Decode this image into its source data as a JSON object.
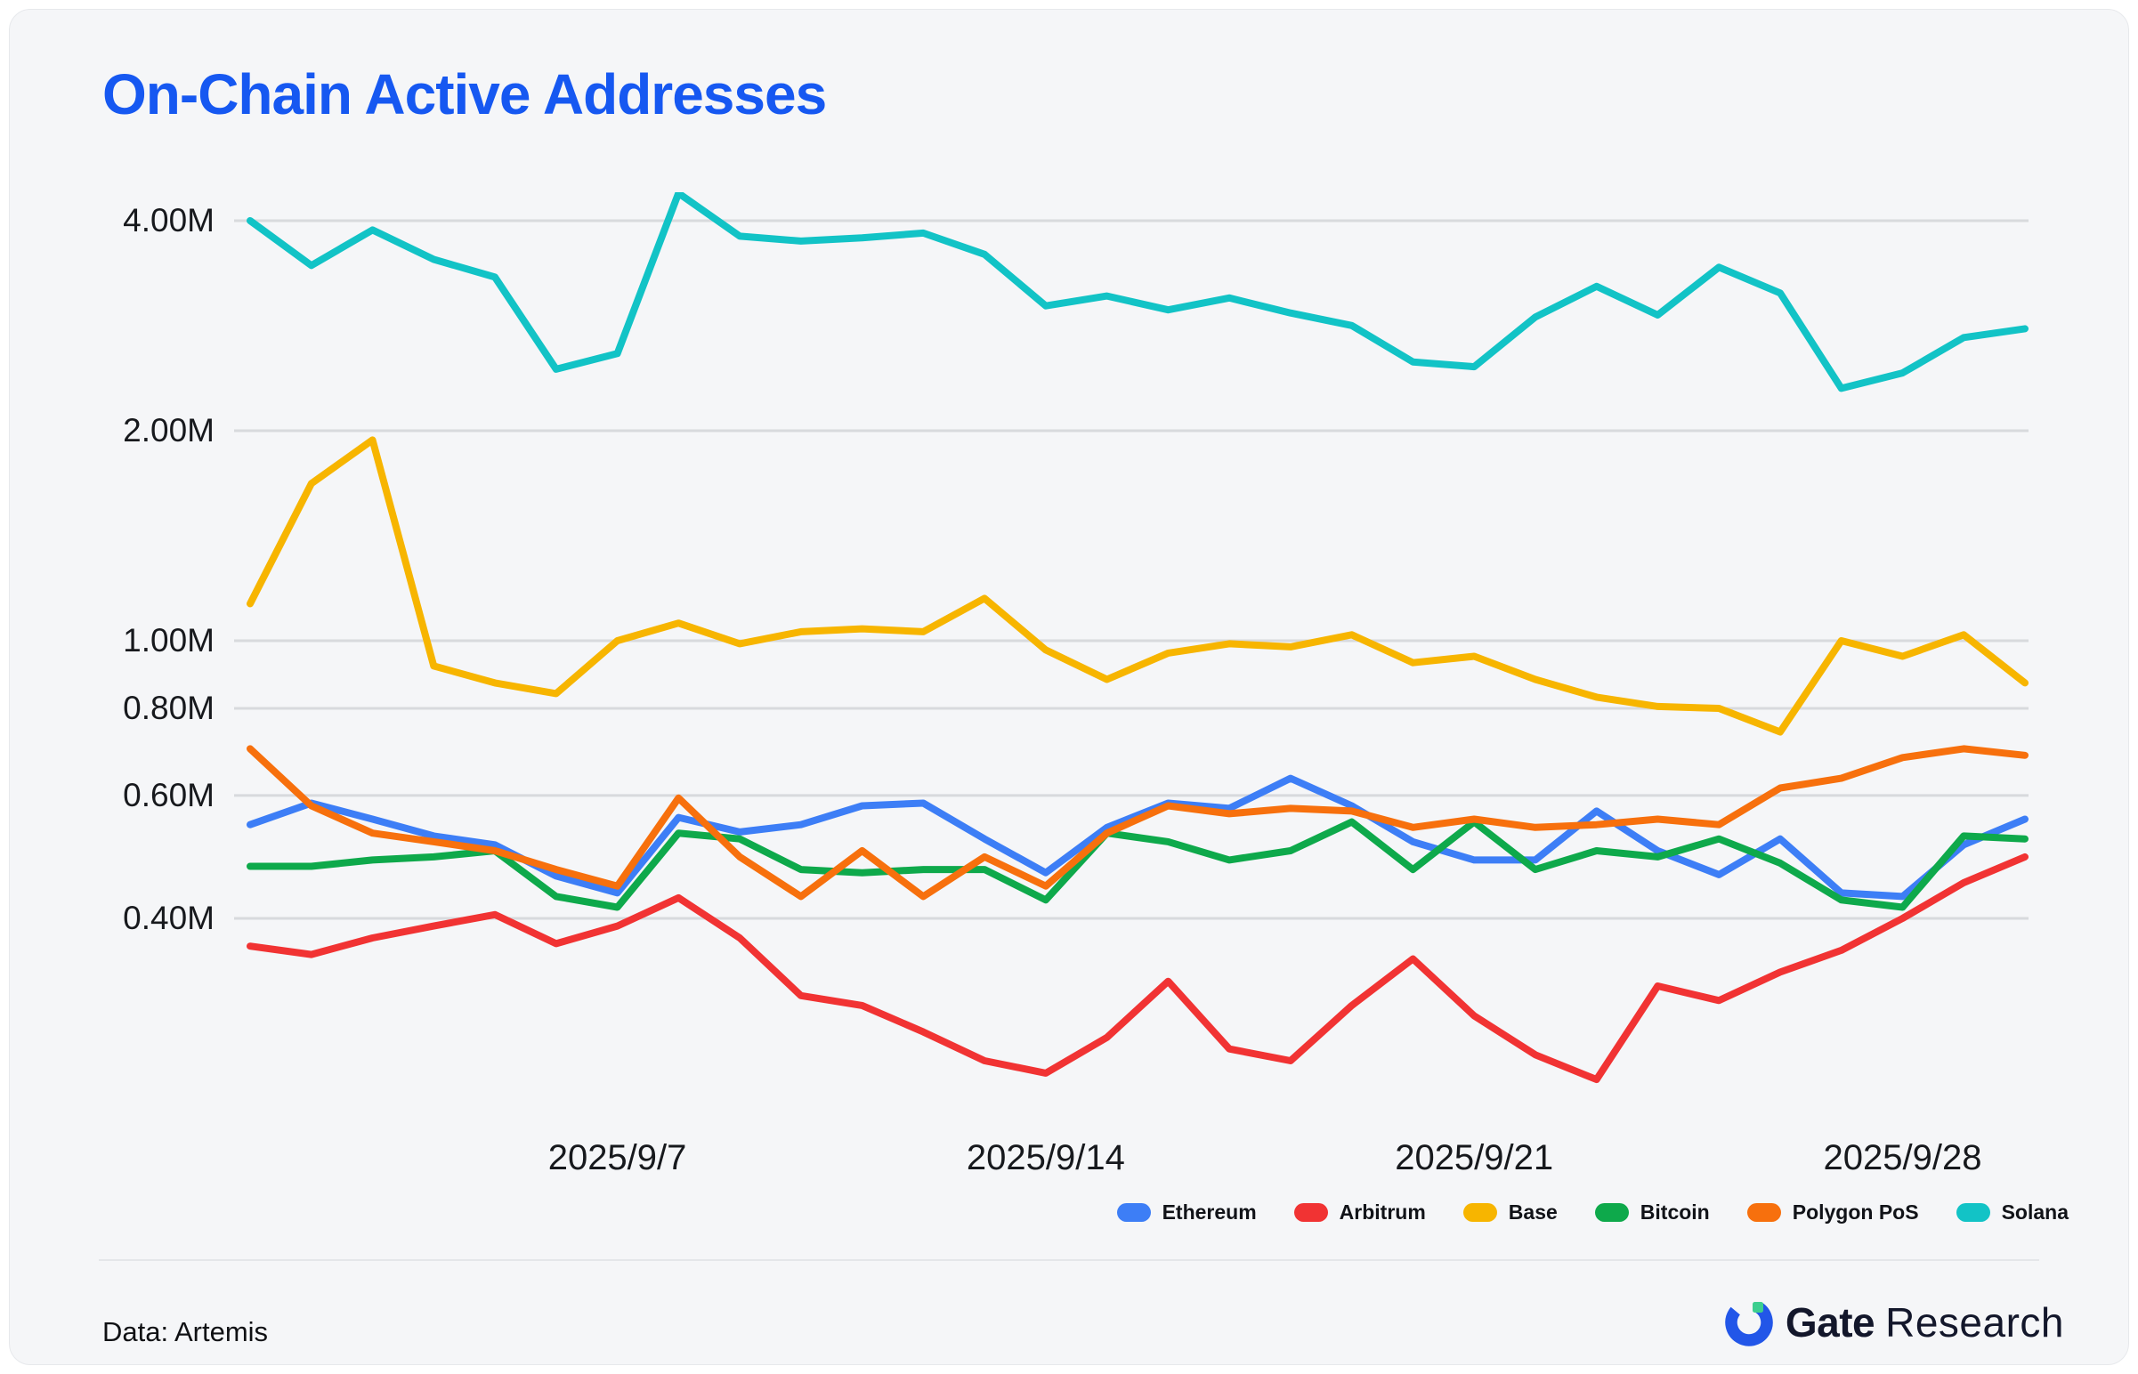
{
  "title": "On-Chain Active Addresses",
  "footer": {
    "source": "Data: Artemis",
    "brand_bold": "Gate",
    "brand_regular": "Research"
  },
  "colors": {
    "title_accent": "#1658F1",
    "background": "#F5F6F8",
    "gridline": "#D8DADD",
    "axis_text": "#17191D",
    "logo_blue": "#2256E8",
    "logo_green": "#3CCE8F"
  },
  "chart_data": {
    "type": "line",
    "y_scale": "log",
    "grid": "horizontal",
    "legend_position": "bottom-right",
    "x": [
      "2025/9/1",
      "2025/9/2",
      "2025/9/3",
      "2025/9/4",
      "2025/9/5",
      "2025/9/6",
      "2025/9/7",
      "2025/9/8",
      "2025/9/9",
      "2025/9/10",
      "2025/9/11",
      "2025/9/12",
      "2025/9/13",
      "2025/9/14",
      "2025/9/15",
      "2025/9/16",
      "2025/9/17",
      "2025/9/18",
      "2025/9/19",
      "2025/9/20",
      "2025/9/21",
      "2025/9/22",
      "2025/9/23",
      "2025/9/24",
      "2025/9/25",
      "2025/9/26",
      "2025/9/27",
      "2025/9/28",
      "2025/9/29",
      "2025/9/30"
    ],
    "x_tick_indices": [
      6,
      13,
      20,
      27
    ],
    "x_tick_labels": [
      "2025/9/7",
      "2025/9/14",
      "2025/9/21",
      "2025/9/28"
    ],
    "y_ticks": [
      {
        "label": "4.00M",
        "value_millions": 4.0
      },
      {
        "label": "2.00M",
        "value_millions": 2.0
      },
      {
        "label": "1.00M",
        "value_millions": 1.0
      },
      {
        "label": "0.80M",
        "value_millions": 0.8
      },
      {
        "label": "0.60M",
        "value_millions": 0.6
      },
      {
        "label": "0.40M",
        "value_millions": 0.4
      }
    ],
    "unit": "millions of active addresses",
    "series": [
      {
        "name": "Ethereum",
        "color": "#3D7EF6",
        "values_millions": [
          0.545,
          0.585,
          0.555,
          0.525,
          0.51,
          0.46,
          0.435,
          0.558,
          0.532,
          0.545,
          0.58,
          0.585,
          0.52,
          0.465,
          0.54,
          0.585,
          0.575,
          0.635,
          0.58,
          0.515,
          0.485,
          0.485,
          0.57,
          0.5,
          0.462,
          0.52,
          0.435,
          0.43,
          0.51,
          0.555
        ]
      },
      {
        "name": "Arbitrum",
        "color": "#F13333",
        "values_millions": [
          0.365,
          0.355,
          0.375,
          0.39,
          0.405,
          0.368,
          0.39,
          0.428,
          0.375,
          0.31,
          0.3,
          0.275,
          0.25,
          0.24,
          0.27,
          0.325,
          0.26,
          0.25,
          0.3,
          0.35,
          0.29,
          0.255,
          0.235,
          0.32,
          0.305,
          0.335,
          0.36,
          0.4,
          0.45,
          0.49
        ]
      },
      {
        "name": "Base",
        "color": "#F7B500",
        "values_millions": [
          1.13,
          1.68,
          1.94,
          0.92,
          0.87,
          0.84,
          1.0,
          1.06,
          0.99,
          1.03,
          1.04,
          1.03,
          1.15,
          0.97,
          0.88,
          0.96,
          0.99,
          0.98,
          1.02,
          0.93,
          0.95,
          0.88,
          0.83,
          0.805,
          0.8,
          0.74,
          1.0,
          0.95,
          1.02,
          0.87
        ]
      },
      {
        "name": "Bitcoin",
        "color": "#0EA94B",
        "values_millions": [
          0.475,
          0.475,
          0.485,
          0.49,
          0.5,
          0.43,
          0.415,
          0.53,
          0.52,
          0.47,
          0.465,
          0.47,
          0.47,
          0.425,
          0.53,
          0.515,
          0.485,
          0.5,
          0.55,
          0.47,
          0.55,
          0.47,
          0.5,
          0.49,
          0.52,
          0.48,
          0.425,
          0.415,
          0.525,
          0.52
        ]
      },
      {
        "name": "Polygon PoS",
        "color": "#F7700D",
        "values_millions": [
          0.7,
          0.58,
          0.53,
          0.515,
          0.5,
          0.47,
          0.445,
          0.595,
          0.49,
          0.43,
          0.5,
          0.43,
          0.49,
          0.445,
          0.53,
          0.58,
          0.565,
          0.575,
          0.57,
          0.54,
          0.555,
          0.54,
          0.545,
          0.555,
          0.545,
          0.615,
          0.635,
          0.68,
          0.7,
          0.685
        ]
      },
      {
        "name": "Solana",
        "color": "#12C3C6",
        "values_millions": [
          4.0,
          3.45,
          3.88,
          3.52,
          3.32,
          2.45,
          2.58,
          4.38,
          3.8,
          3.74,
          3.78,
          3.84,
          3.58,
          3.02,
          3.12,
          2.98,
          3.1,
          2.95,
          2.83,
          2.51,
          2.47,
          2.91,
          3.22,
          2.93,
          3.43,
          3.15,
          2.3,
          2.42,
          2.72,
          2.8
        ]
      }
    ]
  }
}
